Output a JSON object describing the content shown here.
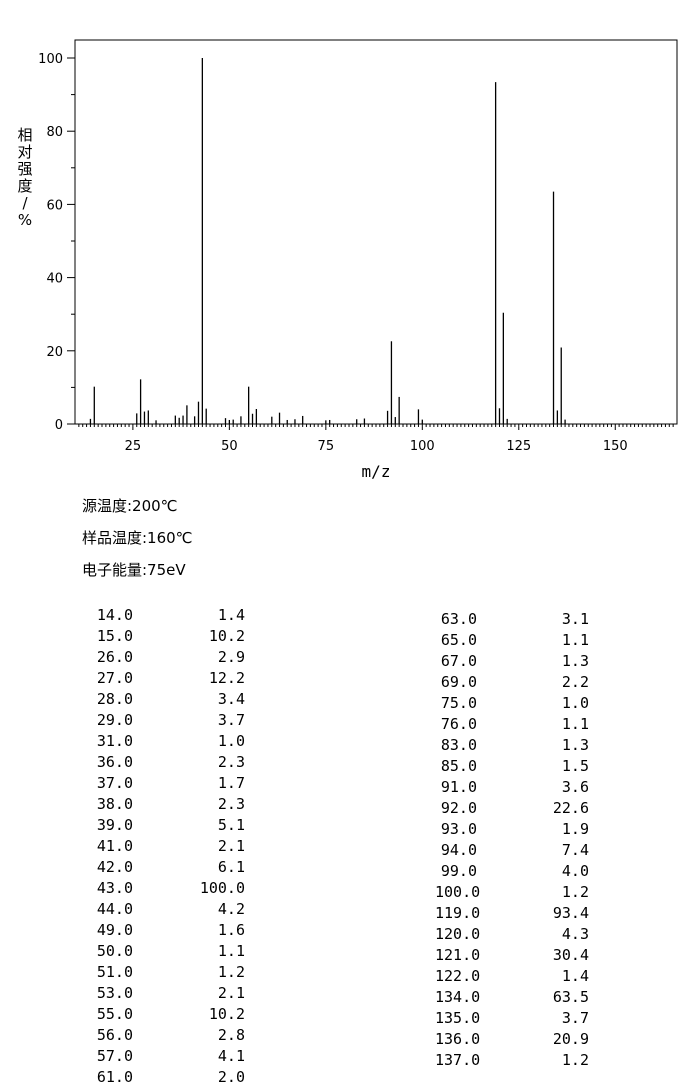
{
  "chart_data": {
    "type": "bar",
    "xlabel": "m/z",
    "ylabel": "相对强度/%",
    "xlim": [
      10,
      166
    ],
    "ylim": [
      0,
      105
    ],
    "xticks": [
      25,
      50,
      75,
      100,
      125,
      150
    ],
    "yticks": [
      0,
      20,
      40,
      60,
      80,
      100
    ],
    "x": [
      14.0,
      15.0,
      26.0,
      27.0,
      28.0,
      29.0,
      31.0,
      36.0,
      37.0,
      38.0,
      39.0,
      41.0,
      42.0,
      43.0,
      44.0,
      49.0,
      50.0,
      51.0,
      53.0,
      55.0,
      56.0,
      57.0,
      61.0,
      63.0,
      65.0,
      67.0,
      69.0,
      75.0,
      76.0,
      83.0,
      85.0,
      91.0,
      92.0,
      93.0,
      94.0,
      99.0,
      100.0,
      119.0,
      120.0,
      121.0,
      122.0,
      134.0,
      135.0,
      136.0,
      137.0
    ],
    "values": [
      1.4,
      10.2,
      2.9,
      12.2,
      3.4,
      3.7,
      1.0,
      2.3,
      1.7,
      2.3,
      5.1,
      2.1,
      6.1,
      100.0,
      4.2,
      1.6,
      1.1,
      1.2,
      2.1,
      10.2,
      2.8,
      4.1,
      2.0,
      3.1,
      1.1,
      1.3,
      2.2,
      1.0,
      1.1,
      1.3,
      1.5,
      3.6,
      22.6,
      1.9,
      7.4,
      4.0,
      1.2,
      93.4,
      4.3,
      30.4,
      1.4,
      63.5,
      3.7,
      20.9,
      1.2
    ]
  },
  "conditions": {
    "source_temp": "源温度:200℃",
    "sample_temp": "样品温度:160℃",
    "electron_energy": "电子能量:75eV"
  },
  "table_left": [
    [
      "14.0",
      "1.4"
    ],
    [
      "15.0",
      "10.2"
    ],
    [
      "26.0",
      "2.9"
    ],
    [
      "27.0",
      "12.2"
    ],
    [
      "28.0",
      "3.4"
    ],
    [
      "29.0",
      "3.7"
    ],
    [
      "31.0",
      "1.0"
    ],
    [
      "36.0",
      "2.3"
    ],
    [
      "37.0",
      "1.7"
    ],
    [
      "38.0",
      "2.3"
    ],
    [
      "39.0",
      "5.1"
    ],
    [
      "41.0",
      "2.1"
    ],
    [
      "42.0",
      "6.1"
    ],
    [
      "43.0",
      "100.0"
    ],
    [
      "44.0",
      "4.2"
    ],
    [
      "49.0",
      "1.6"
    ],
    [
      "50.0",
      "1.1"
    ],
    [
      "51.0",
      "1.2"
    ],
    [
      "53.0",
      "2.1"
    ],
    [
      "55.0",
      "10.2"
    ],
    [
      "56.0",
      "2.8"
    ],
    [
      "57.0",
      "4.1"
    ],
    [
      "61.0",
      "2.0"
    ]
  ],
  "table_right": [
    [
      "63.0",
      "3.1"
    ],
    [
      "65.0",
      "1.1"
    ],
    [
      "67.0",
      "1.3"
    ],
    [
      "69.0",
      "2.2"
    ],
    [
      "75.0",
      "1.0"
    ],
    [
      "76.0",
      "1.1"
    ],
    [
      "83.0",
      "1.3"
    ],
    [
      "85.0",
      "1.5"
    ],
    [
      "91.0",
      "3.6"
    ],
    [
      "92.0",
      "22.6"
    ],
    [
      "93.0",
      "1.9"
    ],
    [
      "94.0",
      "7.4"
    ],
    [
      "99.0",
      "4.0"
    ],
    [
      "100.0",
      "1.2"
    ],
    [
      "119.0",
      "93.4"
    ],
    [
      "120.0",
      "4.3"
    ],
    [
      "121.0",
      "30.4"
    ],
    [
      "122.0",
      "1.4"
    ],
    [
      "134.0",
      "63.5"
    ],
    [
      "135.0",
      "3.7"
    ],
    [
      "136.0",
      "20.9"
    ],
    [
      "137.0",
      "1.2"
    ]
  ]
}
